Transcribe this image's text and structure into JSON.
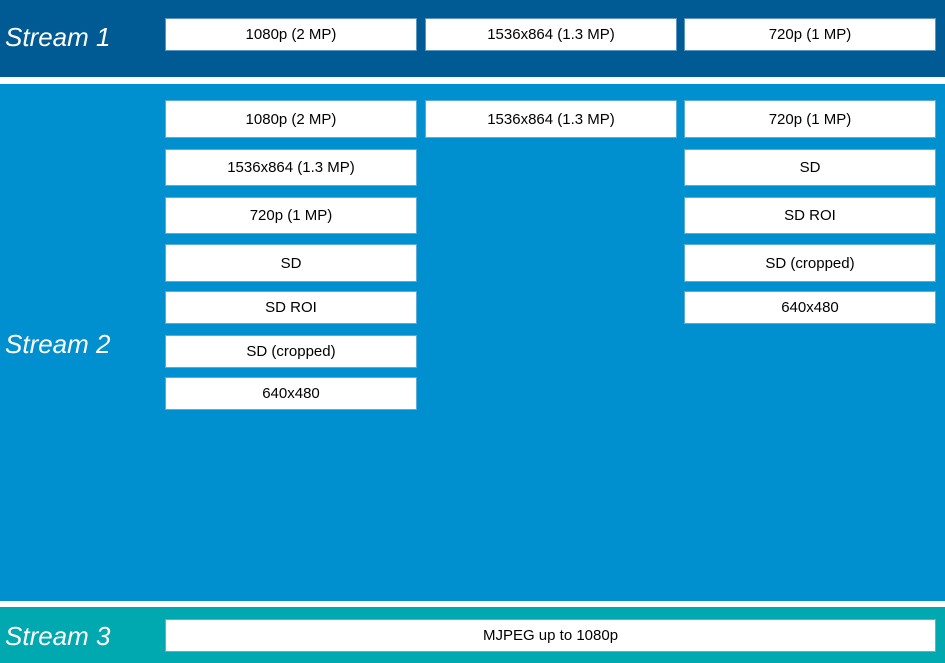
{
  "streams": [
    {
      "label": "Stream 1",
      "columns": [
        [
          "1080p (2 MP)"
        ],
        [
          "1536x864 (1.3 MP)"
        ],
        [
          "720p (1 MP)"
        ]
      ]
    },
    {
      "label": "Stream 2",
      "columns": [
        [
          "1080p (2 MP)",
          "1536x864 (1.3 MP)",
          "720p (1 MP)",
          "SD",
          "SD ROI",
          "SD (cropped)",
          "640x480"
        ],
        [
          "1536x864 (1.3 MP)"
        ],
        [
          "720p (1 MP)",
          "SD",
          "SD ROI",
          "SD (cropped)",
          "640x480"
        ]
      ]
    },
    {
      "label": "Stream 3",
      "full": "MJPEG up to 1080p"
    }
  ],
  "colors": {
    "stream1": "#005a94",
    "stream2": "#0090cf",
    "stream3": "#00a8b0"
  }
}
